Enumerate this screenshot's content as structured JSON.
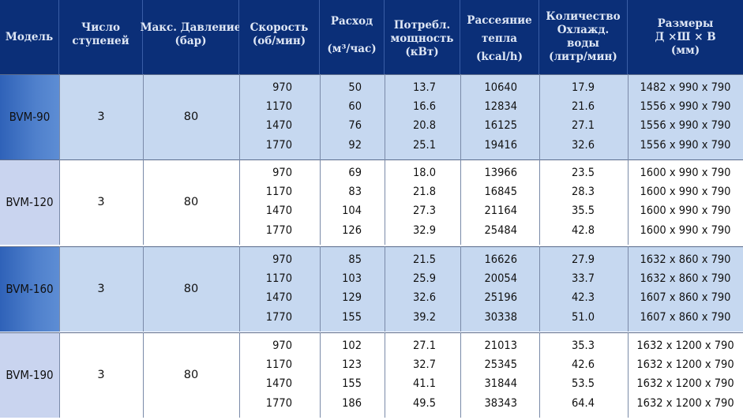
{
  "headers": {
    "model": "Модель",
    "stages": [
      "Число",
      "ступеней"
    ],
    "pressure": [
      "Макс. Давление",
      "(бар)"
    ],
    "speed": [
      "Скорость",
      "(об/мин)"
    ],
    "flow": [
      "Расход",
      "(м³/час)"
    ],
    "power": [
      "Потребл.",
      "мощность",
      "(кВт)"
    ],
    "heat": [
      "Рассеяние",
      "тепла",
      "(kcal/h)"
    ],
    "water": [
      "Количество",
      "Охлажд.",
      "воды",
      "(литр/мин)"
    ],
    "dims": [
      "Размеры",
      "Д ×Ш × В",
      "(мм)"
    ]
  },
  "colors": {
    "header_bg": "#0b2f78",
    "header_text": "#dfe7f5",
    "row_blue": "#c6d8f0",
    "row_white": "#ffffff",
    "model_blue_dark": "#2f62b8",
    "model_blue_light": "#c9d4ef"
  },
  "groups": [
    {
      "model": "BVM-90",
      "stages": "3",
      "pressure": "80",
      "rows": [
        {
          "speed": "970",
          "flow": "50",
          "power": "13.7",
          "heat": "10640",
          "water": "17.9",
          "dims": "1482 x 990 x 790"
        },
        {
          "speed": "1170",
          "flow": "60",
          "power": "16.6",
          "heat": "12834",
          "water": "21.6",
          "dims": "1556 x 990 x 790"
        },
        {
          "speed": "1470",
          "flow": "76",
          "power": "20.8",
          "heat": "16125",
          "water": "27.1",
          "dims": "1556 x 990 x 790"
        },
        {
          "speed": "1770",
          "flow": "92",
          "power": "25.1",
          "heat": "19416",
          "water": "32.6",
          "dims": "1556 x 990 x 790"
        }
      ]
    },
    {
      "model": "BVM-120",
      "stages": "3",
      "pressure": "80",
      "rows": [
        {
          "speed": "970",
          "flow": "69",
          "power": "18.0",
          "heat": "13966",
          "water": "23.5",
          "dims": "1600 x 990 x 790"
        },
        {
          "speed": "1170",
          "flow": "83",
          "power": "21.8",
          "heat": "16845",
          "water": "28.3",
          "dims": "1600 x 990 x 790"
        },
        {
          "speed": "1470",
          "flow": "104",
          "power": "27.3",
          "heat": "21164",
          "water": "35.5",
          "dims": "1600 x 990 x 790"
        },
        {
          "speed": "1770",
          "flow": "126",
          "power": "32.9",
          "heat": "25484",
          "water": "42.8",
          "dims": "1600 x 990 x 790"
        }
      ]
    },
    {
      "model": "BVM-160",
      "stages": "3",
      "pressure": "80",
      "rows": [
        {
          "speed": "970",
          "flow": "85",
          "power": "21.5",
          "heat": "16626",
          "water": "27.9",
          "dims": "1632 x 860 x 790"
        },
        {
          "speed": "1170",
          "flow": "103",
          "power": "25.9",
          "heat": "20054",
          "water": "33.7",
          "dims": "1632 x 860 x 790"
        },
        {
          "speed": "1470",
          "flow": "129",
          "power": "32.6",
          "heat": "25196",
          "water": "42.3",
          "dims": "1607 x 860 x 790"
        },
        {
          "speed": "1770",
          "flow": "155",
          "power": "39.2",
          "heat": "30338",
          "water": "51.0",
          "dims": "1607 x 860 x 790"
        }
      ]
    },
    {
      "model": "BVM-190",
      "stages": "3",
      "pressure": "80",
      "rows": [
        {
          "speed": "970",
          "flow": "102",
          "power": "27.1",
          "heat": "21013",
          "water": "35.3",
          "dims": "1632 x 1200 x 790"
        },
        {
          "speed": "1170",
          "flow": "123",
          "power": "32.7",
          "heat": "25345",
          "water": "42.6",
          "dims": "1632 x 1200 x 790"
        },
        {
          "speed": "1470",
          "flow": "155",
          "power": "41.1",
          "heat": "31844",
          "water": "53.5",
          "dims": "1632 x 1200 x 790"
        },
        {
          "speed": "1770",
          "flow": "186",
          "power": "49.5",
          "heat": "38343",
          "water": "64.4",
          "dims": "1632 x 1200 x 790"
        }
      ]
    }
  ]
}
